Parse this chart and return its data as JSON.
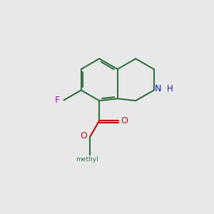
{
  "background_color": "#e8e8e8",
  "bond_color": "#3a7a4a",
  "n_color": "#1a1acc",
  "o_color": "#cc1111",
  "f_color": "#bb11bb",
  "line_width": 1.6,
  "fig_size": [
    3.0,
    3.0
  ],
  "dpi": 100,
  "xlim": [
    0,
    10
  ],
  "ylim": [
    0,
    10
  ]
}
